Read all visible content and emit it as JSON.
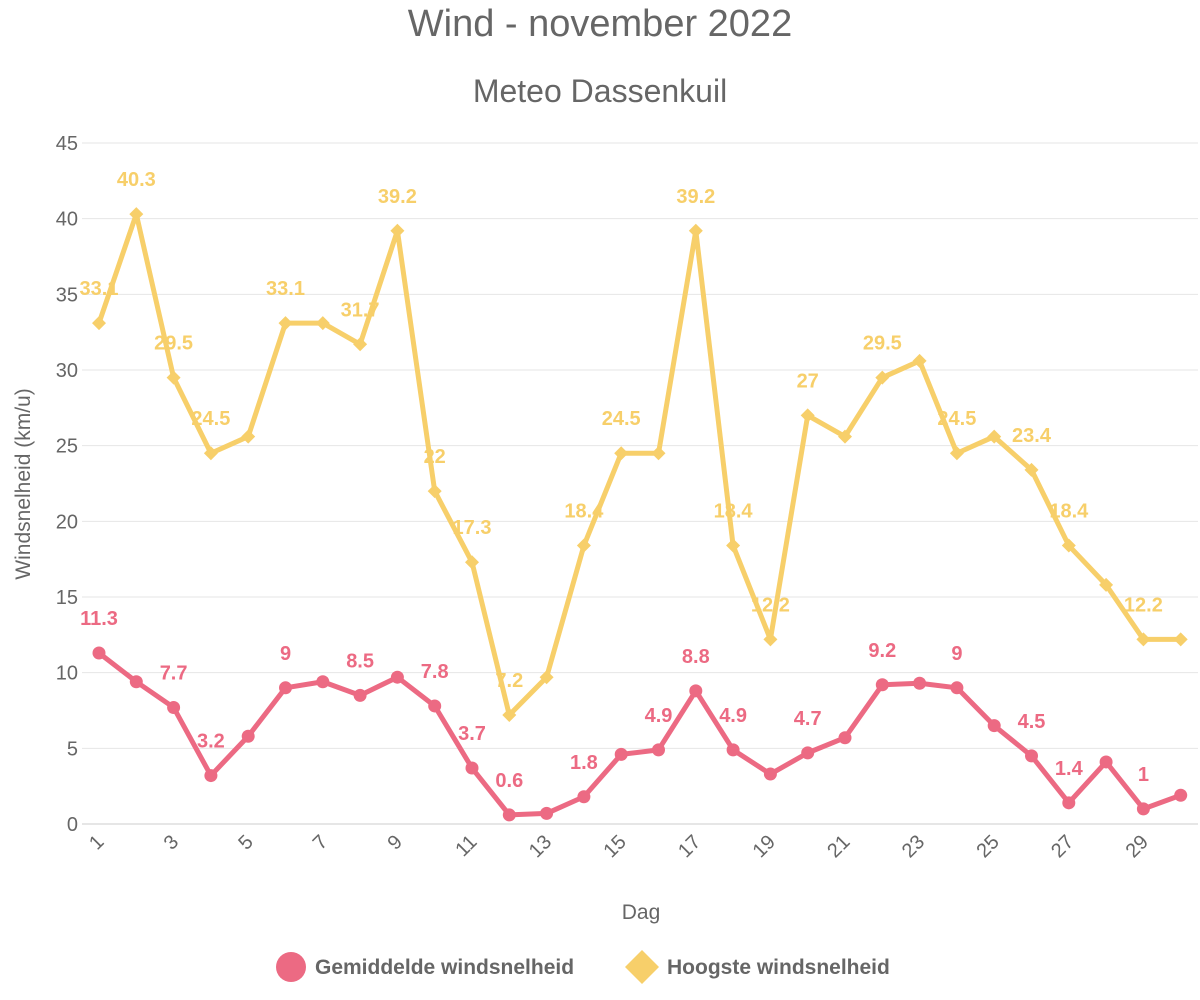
{
  "chart_data": {
    "type": "line",
    "title": "Wind - november 2022",
    "subtitle": "Meteo Dassenkuil",
    "xlabel": "Dag",
    "ylabel": "Windsnelheid (km/u)",
    "ylim": [
      0,
      45
    ],
    "y_ticks": [
      0,
      5,
      10,
      15,
      20,
      25,
      30,
      35,
      40,
      45
    ],
    "x": [
      1,
      2,
      3,
      4,
      5,
      6,
      7,
      8,
      9,
      10,
      11,
      12,
      13,
      14,
      15,
      16,
      17,
      18,
      19,
      20,
      21,
      22,
      23,
      24,
      25,
      26,
      27,
      28,
      29,
      30
    ],
    "x_tick_labels": [
      "1",
      "3",
      "5",
      "7",
      "9",
      "11",
      "13",
      "15",
      "17",
      "19",
      "21",
      "23",
      "25",
      "27",
      "29"
    ],
    "grid": true,
    "legend_position": "bottom",
    "series": [
      {
        "name": "Gemiddelde windsnelheid",
        "color": "#ec6a83",
        "marker": "circle",
        "values": [
          11.3,
          9.4,
          7.7,
          3.2,
          5.8,
          9,
          9.4,
          8.5,
          9.7,
          7.8,
          3.7,
          0.6,
          0.7,
          1.8,
          4.6,
          4.9,
          8.8,
          4.9,
          3.3,
          4.7,
          5.7,
          9.2,
          9.3,
          9,
          6.5,
          4.5,
          1.4,
          4.1,
          1,
          1.9
        ],
        "data_labels": {
          "1": "11.3",
          "3": "7.7",
          "4": "3.2",
          "6": "9",
          "8": "8.5",
          "10": "7.8",
          "11": "3.7",
          "12": "0.6",
          "14": "1.8",
          "16": "4.9",
          "17": "8.8",
          "18": "4.9",
          "20": "4.7",
          "22": "9.2",
          "24": "9",
          "26": "4.5",
          "27": "1.4",
          "29": "1"
        }
      },
      {
        "name": "Hoogste windsnelheid",
        "color": "#f7cf6a",
        "marker": "diamond",
        "values": [
          33.1,
          40.3,
          29.5,
          24.5,
          25.6,
          33.1,
          33.1,
          31.7,
          39.2,
          22,
          17.3,
          7.2,
          9.7,
          18.4,
          24.5,
          24.5,
          39.2,
          18.4,
          12.2,
          27,
          25.6,
          29.5,
          30.6,
          24.5,
          25.6,
          23.4,
          18.4,
          15.8,
          12.2,
          12.2
        ],
        "data_labels": {
          "1": "33.1",
          "2": "40.3",
          "3": "29.5",
          "4": "24.5",
          "6": "33.1",
          "8": "31.7",
          "9": "39.2",
          "10": "22",
          "11": "17.3",
          "12": "7.2",
          "14": "18.4",
          "15": "24.5",
          "17": "39.2",
          "18": "18.4",
          "19": "12.2",
          "20": "27",
          "22": "29.5",
          "24": "24.5",
          "26": "23.4",
          "27": "18.4",
          "29": "12.2"
        }
      }
    ]
  }
}
